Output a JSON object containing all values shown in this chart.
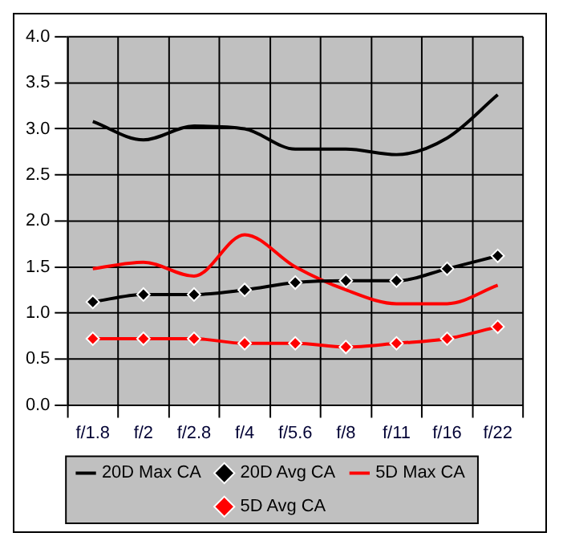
{
  "chart_data": {
    "type": "line",
    "categories": [
      "f/1.8",
      "f/2",
      "f/2.8",
      "f/4",
      "f/5.6",
      "f/8",
      "f/11",
      "f/16",
      "f/22"
    ],
    "series": [
      {
        "name": "20D Max CA",
        "color": "#000000",
        "marker": "none",
        "values": [
          3.08,
          2.88,
          3.03,
          3.0,
          2.78,
          2.78,
          2.72,
          2.9,
          3.37
        ]
      },
      {
        "name": "20D Avg CA",
        "color": "#000000",
        "marker": "diamond",
        "values": [
          1.12,
          1.2,
          1.2,
          1.25,
          1.33,
          1.35,
          1.35,
          1.48,
          1.62
        ]
      },
      {
        "name": "5D Max CA",
        "color": "#ff0000",
        "marker": "none",
        "values": [
          1.48,
          1.55,
          1.4,
          1.85,
          1.5,
          1.25,
          1.1,
          1.1,
          1.3
        ]
      },
      {
        "name": "5D Avg CA",
        "color": "#ff0000",
        "marker": "diamond",
        "values": [
          0.72,
          0.72,
          0.72,
          0.67,
          0.67,
          0.63,
          0.67,
          0.72,
          0.85
        ]
      }
    ],
    "ylim": [
      0,
      4
    ],
    "yticks": [
      {
        "value": 0,
        "label": "0.0"
      },
      {
        "value": 0.5,
        "label": "0.5"
      },
      {
        "value": 1,
        "label": "1.0"
      },
      {
        "value": 1.5,
        "label": "1.5"
      },
      {
        "value": 2,
        "label": "2.0"
      },
      {
        "value": 2.5,
        "label": "2.5"
      },
      {
        "value": 3,
        "label": "3.0"
      },
      {
        "value": 3.5,
        "label": "3.5"
      },
      {
        "value": 4,
        "label": "4.0"
      }
    ],
    "grid": true,
    "legend": "bottom"
  }
}
